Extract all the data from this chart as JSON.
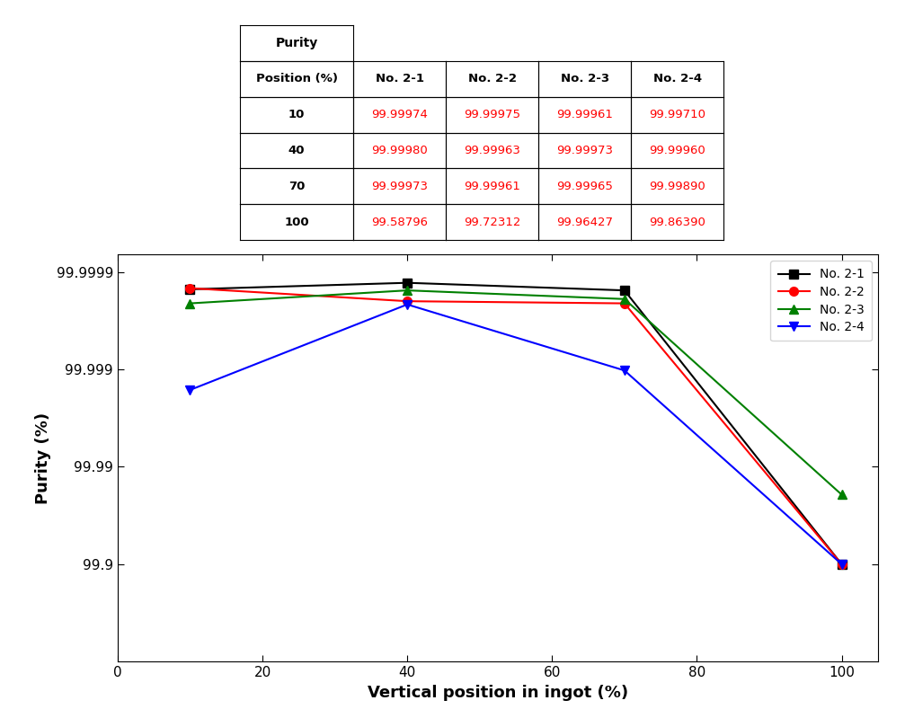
{
  "x": [
    10,
    40,
    70,
    100
  ],
  "series": {
    "No. 2-1": [
      99.99974,
      99.9998,
      99.99973,
      99.58796
    ],
    "No. 2-2": [
      99.99975,
      99.99963,
      99.99961,
      99.72312
    ],
    "No. 2-3": [
      99.99961,
      99.99973,
      99.99965,
      99.96427
    ],
    "No. 2-4": [
      99.9971,
      99.9996,
      99.9989,
      99.8639
    ]
  },
  "colors": {
    "No. 2-1": "#000000",
    "No. 2-2": "#ff0000",
    "No. 2-3": "#008000",
    "No. 2-4": "#0000ff"
  },
  "markers": {
    "No. 2-1": "s",
    "No. 2-2": "o",
    "No. 2-3": "^",
    "No. 2-4": "v"
  },
  "xlabel": "Vertical position in ingot (%)",
  "ylabel": "Purity (%)",
  "xlim": [
    0,
    105
  ],
  "xticks": [
    0,
    20,
    40,
    60,
    80,
    100
  ],
  "ytick_vals": [
    99.9,
    99.99,
    99.999,
    99.9999
  ],
  "ytick_labels": [
    "99.9",
    "99.99",
    "99.999",
    "99.9999"
  ],
  "table_data": {
    "header_col": "Position (%)",
    "header_purity": "Purity",
    "cols": [
      "No. 2-1",
      "No. 2-2",
      "No. 2-3",
      "No. 2-4"
    ],
    "rows": {
      "10": [
        "99.99974",
        "99.99975",
        "99.99961",
        "99.99710"
      ],
      "40": [
        "99.99980",
        "99.99963",
        "99.99973",
        "99.99960"
      ],
      "70": [
        "99.99973",
        "99.99961",
        "99.99965",
        "99.99890"
      ],
      "100": [
        "99.58796",
        "99.72312",
        "99.96427",
        "99.86390"
      ]
    }
  }
}
